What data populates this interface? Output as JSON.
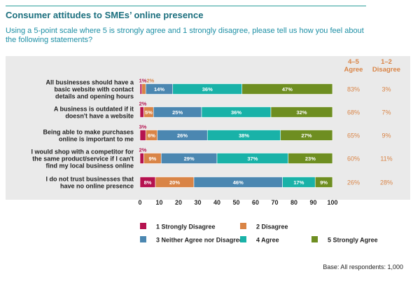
{
  "title": "Consumer attitudes to SMEs’ online presence",
  "subtitle": "Using a 5-point scale where 5 is strongly agree and 1 strongly disagree, please tell us how you feel about the following statements?",
  "base_note": "Base: All respondents: 1,000",
  "colors": {
    "s1": "#b5124f",
    "s2": "#d98446",
    "s3": "#4b87b1",
    "s4": "#19b2a8",
    "s5": "#6e8e21",
    "summary_text": "#d98446",
    "panel_bg": "#eaeaea",
    "title": "#1b6f7e",
    "subtitle": "#1d8fa5"
  },
  "chart_data": {
    "type": "bar",
    "orientation": "horizontal",
    "stacked": true,
    "categories": [
      [
        "All businesses should have a",
        "basic website with contact",
        "details and opening hours"
      ],
      [
        "A business is outdated if it",
        "doesn't have a website"
      ],
      [
        "Being able to make purchases",
        "online is important to me"
      ],
      [
        "I would shop with a competitor for",
        "the same product/service if I can't",
        "find my local business online"
      ],
      [
        "I do not trust businesses that",
        "have no online presence"
      ]
    ],
    "series": [
      {
        "name": "1 Strongly Disagree",
        "values": [
          1,
          2,
          3,
          2,
          8
        ]
      },
      {
        "name": "2 Disagree",
        "values": [
          2,
          5,
          6,
          9,
          20
        ]
      },
      {
        "name": "3 Neither Agree nor Disagree",
        "values": [
          14,
          25,
          26,
          29,
          46
        ]
      },
      {
        "name": "4 Agree",
        "values": [
          36,
          36,
          38,
          37,
          17
        ]
      },
      {
        "name": "5 Strongly Agree",
        "values": [
          47,
          32,
          27,
          23,
          9
        ]
      }
    ],
    "data_labels": [
      [
        "1%",
        "2%",
        "14%",
        "36%",
        "47%"
      ],
      [
        "2%",
        "5%",
        "25%",
        "36%",
        "32%"
      ],
      [
        "3%",
        "6%",
        "26%",
        "38%",
        "27%"
      ],
      [
        "2%",
        "9%",
        "29%",
        "37%",
        "23%"
      ],
      [
        "8%",
        "20%",
        "46%",
        "17%",
        "9%"
      ]
    ],
    "xlim": [
      0,
      100
    ],
    "xticks": [
      0,
      10,
      20,
      30,
      40,
      50,
      60,
      70,
      80,
      90,
      100
    ],
    "summary_columns": [
      {
        "header": [
          "4–5",
          "Agree"
        ],
        "values": [
          "83%",
          "68%",
          "65%",
          "60%",
          "26%"
        ]
      },
      {
        "header": [
          "1–2",
          "Disagree"
        ],
        "values": [
          "3%",
          "7%",
          "9%",
          "11%",
          "28%"
        ]
      }
    ],
    "legend_placement": "bottom"
  }
}
